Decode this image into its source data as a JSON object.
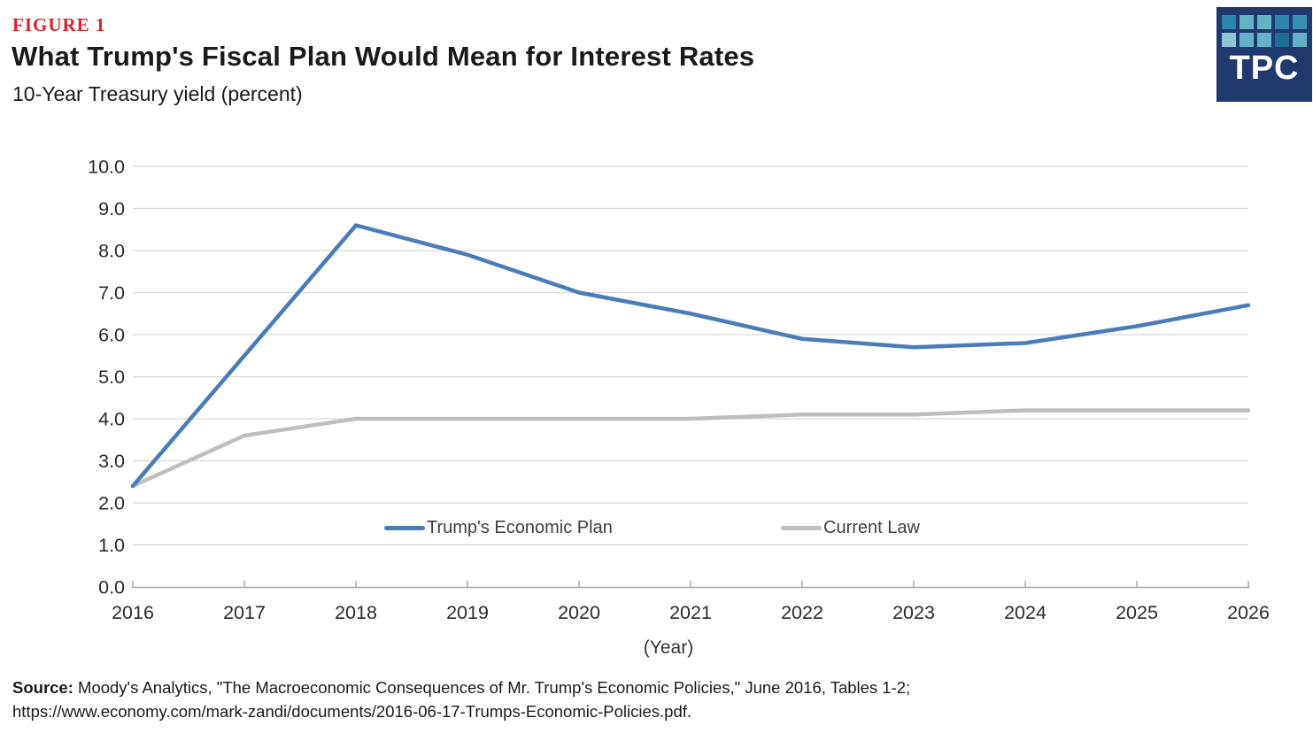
{
  "header": {
    "figure_label": "FIGURE 1",
    "title": "What Trump's Fiscal Plan Would Mean for Interest Rates",
    "subtitle": "10-Year Treasury yield (percent)"
  },
  "logo": {
    "text": "TPC",
    "bg_color": "#203a6d",
    "squares": [
      "#2d84a8",
      "#64b2c8",
      "#64b2c8",
      "#2d84a8",
      "#3690b4",
      "#8cc5d3",
      "#64b2c8",
      "#64b2c8",
      "#1c6d96",
      "#64b2c8"
    ]
  },
  "chart_data": {
    "type": "line",
    "title": "What Trump's Fiscal Plan Would Mean for Interest Rates",
    "ylabel": "10-Year Treasury yield (percent)",
    "xlabel": "(Year)",
    "x": [
      2016,
      2017,
      2018,
      2019,
      2020,
      2021,
      2022,
      2023,
      2024,
      2025,
      2026
    ],
    "series": [
      {
        "name": "Trump's Economic Plan",
        "color": "#4a7db8",
        "values": [
          2.4,
          5.5,
          8.6,
          7.9,
          7.0,
          6.5,
          5.9,
          5.7,
          5.8,
          6.2,
          6.7
        ]
      },
      {
        "name": "Current Law",
        "color": "#bfbfbf",
        "values": [
          2.4,
          3.6,
          4.0,
          4.0,
          4.0,
          4.0,
          4.1,
          4.1,
          4.2,
          4.2,
          4.2
        ]
      }
    ],
    "ylim": [
      0.0,
      10.0
    ],
    "ytick_step": 1.0,
    "ytick_labels": [
      "0.0",
      "1.0",
      "2.0",
      "3.0",
      "4.0",
      "5.0",
      "6.0",
      "7.0",
      "8.0",
      "9.0",
      "10.0"
    ],
    "grid": true,
    "legend_position": "inside-bottom"
  },
  "source": {
    "label": "Source:",
    "text": " Moody's Analytics, \"The Macroeconomic Consequences of Mr. Trump's Economic Policies,\" June 2016, Tables 1-2;",
    "url_line": "https://www.economy.com/mark-zandi/documents/2016-06-17-Trumps-Economic-Policies.pdf."
  },
  "theme": {
    "accent_red": "#d8232a",
    "title_text": "#1a1a1a",
    "grid_line": "#d9d9d9",
    "axis_line": "#a6a6a6",
    "tick_text": "#2b2b2b",
    "legend_text": "#3f3f3f"
  }
}
